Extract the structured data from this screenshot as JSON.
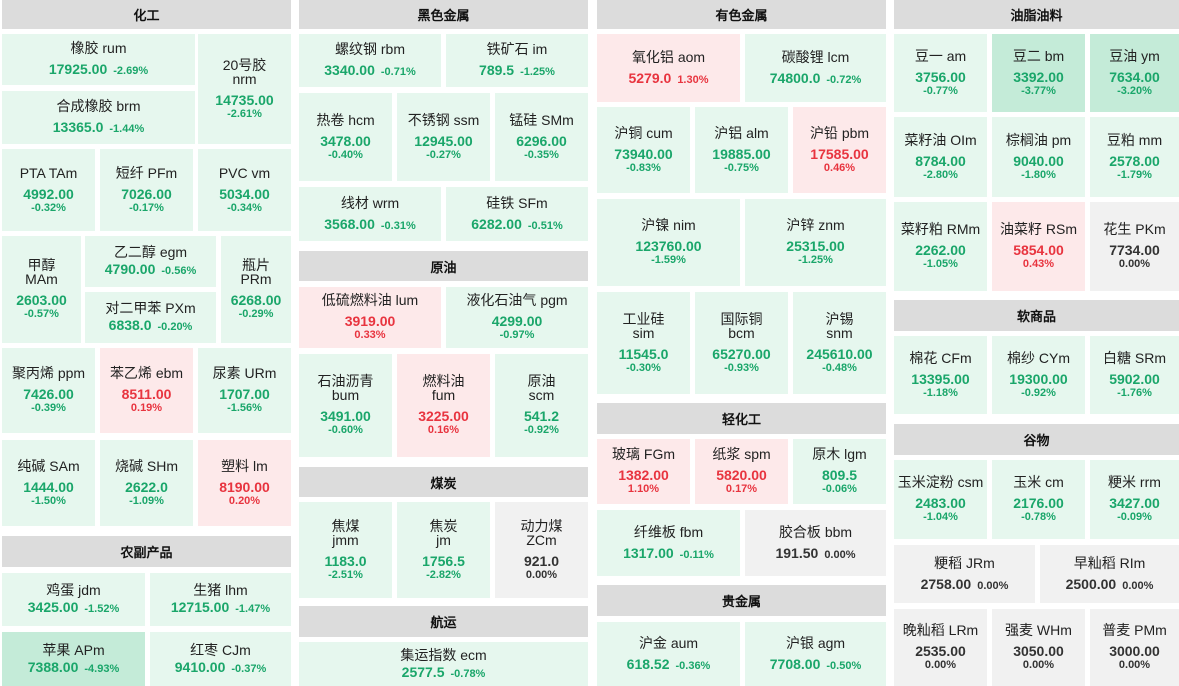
{
  "sections": {
    "huagong": "化工",
    "heise": "黑色金属",
    "youse": "有色金属",
    "youzhi": "油脂油料",
    "yuanyou": "原油",
    "meitan": "煤炭",
    "hangyun": "航运",
    "nongfu": "农副产品",
    "qinghuagong": "轻化工",
    "guijinshu": "贵金属",
    "ruanshangpin": "软商品",
    "guwu": "谷物"
  },
  "items": {
    "rum": {
      "name": "橡胶 rum",
      "price": "17925.00",
      "change": "-2.69%"
    },
    "nrm": {
      "name1": "20号胶",
      "name2": "nrm",
      "price": "14735.00",
      "change": "-2.61%"
    },
    "brm": {
      "name": "合成橡胶 brm",
      "price": "13365.0",
      "change": "-1.44%"
    },
    "TAm": {
      "name": "PTA TAm",
      "price": "4992.00",
      "change": "-0.32%"
    },
    "PFm": {
      "name": "短纤 PFm",
      "price": "7026.00",
      "change": "-0.17%"
    },
    "vm": {
      "name": "PVC vm",
      "price": "5034.00",
      "change": "-0.34%"
    },
    "MAm": {
      "name1": "甲醇",
      "name2": "MAm",
      "price": "2603.00",
      "change": "-0.57%"
    },
    "egm": {
      "name": "乙二醇 egm",
      "price": "4790.00",
      "change": "-0.56%"
    },
    "PXm": {
      "name": "对二甲苯 PXm",
      "price": "6838.0",
      "change": "-0.20%"
    },
    "PRm": {
      "name1": "瓶片",
      "name2": "PRm",
      "price": "6268.00",
      "change": "-0.29%"
    },
    "ppm": {
      "name": "聚丙烯 ppm",
      "price": "7426.00",
      "change": "-0.39%"
    },
    "ebm": {
      "name": "苯乙烯 ebm",
      "price": "8511.00",
      "change": "0.19%"
    },
    "URm": {
      "name": "尿素 URm",
      "price": "1707.00",
      "change": "-1.56%"
    },
    "SAm": {
      "name": "纯碱 SAm",
      "price": "1444.00",
      "change": "-1.50%"
    },
    "SHm": {
      "name": "烧碱 SHm",
      "price": "2622.0",
      "change": "-1.09%"
    },
    "lm": {
      "name": "塑料 lm",
      "price": "8190.00",
      "change": "0.20%"
    },
    "jdm": {
      "name": "鸡蛋 jdm",
      "price": "3425.00",
      "change": "-1.52%"
    },
    "lhm": {
      "name": "生猪 lhm",
      "price": "12715.00",
      "change": "-1.47%"
    },
    "APm": {
      "name": "苹果 APm",
      "price": "7388.00",
      "change": "-4.93%"
    },
    "CJm": {
      "name": "红枣 CJm",
      "price": "9410.00",
      "change": "-0.37%"
    },
    "rbm": {
      "name": "螺纹钢 rbm",
      "price": "3340.00",
      "change": "-0.71%"
    },
    "im": {
      "name": "铁矿石 im",
      "price": "789.5",
      "change": "-1.25%"
    },
    "hcm": {
      "name": "热卷 hcm",
      "price": "3478.00",
      "change": "-0.40%"
    },
    "ssm": {
      "name": "不锈钢 ssm",
      "price": "12945.00",
      "change": "-0.27%"
    },
    "SMm": {
      "name": "锰硅 SMm",
      "price": "6296.00",
      "change": "-0.35%"
    },
    "wrm": {
      "name": "线材 wrm",
      "price": "3568.00",
      "change": "-0.31%"
    },
    "SFm": {
      "name": "硅铁 SFm",
      "price": "6282.00",
      "change": "-0.51%"
    },
    "lum": {
      "name": "低硫燃料油 lum",
      "price": "3919.00",
      "change": "0.33%"
    },
    "pgm": {
      "name": "液化石油气 pgm",
      "price": "4299.00",
      "change": "-0.97%"
    },
    "bum": {
      "name1": "石油沥青",
      "name2": "bum",
      "price": "3491.00",
      "change": "-0.60%"
    },
    "fum": {
      "name1": "燃料油",
      "name2": "fum",
      "price": "3225.00",
      "change": "0.16%"
    },
    "scm": {
      "name1": "原油",
      "name2": "scm",
      "price": "541.2",
      "change": "-0.92%"
    },
    "jmm": {
      "name1": "焦煤",
      "name2": "jmm",
      "price": "1183.0",
      "change": "-2.51%"
    },
    "jm": {
      "name1": "焦炭",
      "name2": "jm",
      "price": "1756.5",
      "change": "-2.82%"
    },
    "ZCm": {
      "name1": "动力煤",
      "name2": "ZCm",
      "price": "921.0",
      "change": "0.00%"
    },
    "ecm": {
      "name": "集运指数 ecm",
      "price": "2577.5",
      "change": "-0.78%"
    },
    "aom": {
      "name": "氧化铝 aom",
      "price": "5279.0",
      "change": "1.30%"
    },
    "lcm": {
      "name": "碳酸锂 lcm",
      "price": "74800.0",
      "change": "-0.72%"
    },
    "cum": {
      "name": "沪铜 cum",
      "price": "73940.00",
      "change": "-0.83%"
    },
    "alm": {
      "name": "沪铝 alm",
      "price": "19885.00",
      "change": "-0.75%"
    },
    "pbm": {
      "name": "沪铅 pbm",
      "price": "17585.00",
      "change": "0.46%"
    },
    "nim": {
      "name": "沪镍 nim",
      "price": "123760.00",
      "change": "-1.59%"
    },
    "znm": {
      "name": "沪锌 znm",
      "price": "25315.00",
      "change": "-1.25%"
    },
    "sim": {
      "name1": "工业硅",
      "name2": "sim",
      "price": "11545.0",
      "change": "-0.30%"
    },
    "bcm": {
      "name1": "国际铜",
      "name2": "bcm",
      "price": "65270.00",
      "change": "-0.93%"
    },
    "snm": {
      "name1": "沪锡",
      "name2": "snm",
      "price": "245610.00",
      "change": "-0.48%"
    },
    "FGm": {
      "name": "玻璃 FGm",
      "price": "1382.00",
      "change": "1.10%"
    },
    "spm": {
      "name": "纸浆 spm",
      "price": "5820.00",
      "change": "0.17%"
    },
    "lgm": {
      "name": "原木 lgm",
      "price": "809.5",
      "change": "-0.06%"
    },
    "fbm": {
      "name": "纤维板 fbm",
      "price": "1317.00",
      "change": "-0.11%"
    },
    "bbm": {
      "name": "胶合板 bbm",
      "price": "191.50",
      "change": "0.00%"
    },
    "aum": {
      "name": "沪金 aum",
      "price": "618.52",
      "change": "-0.36%"
    },
    "agm": {
      "name": "沪银 agm",
      "price": "7708.00",
      "change": "-0.50%"
    },
    "am": {
      "name": "豆一 am",
      "price": "3756.00",
      "change": "-0.77%"
    },
    "bm": {
      "name": "豆二 bm",
      "price": "3392.00",
      "change": "-3.77%"
    },
    "ym": {
      "name": "豆油 ym",
      "price": "7634.00",
      "change": "-3.20%"
    },
    "OIm": {
      "name": "菜籽油 OIm",
      "price": "8784.00",
      "change": "-2.80%"
    },
    "pm": {
      "name": "棕榈油 pm",
      "price": "9040.00",
      "change": "-1.80%"
    },
    "mm": {
      "name": "豆粕 mm",
      "price": "2578.00",
      "change": "-1.79%"
    },
    "RMm": {
      "name": "菜籽粕 RMm",
      "price": "2262.00",
      "change": "-1.05%"
    },
    "RSm": {
      "name": "油菜籽 RSm",
      "price": "5854.00",
      "change": "0.43%"
    },
    "PKm": {
      "name": "花生 PKm",
      "price": "7734.00",
      "change": "0.00%"
    },
    "CFm": {
      "name": "棉花 CFm",
      "price": "13395.00",
      "change": "-1.18%"
    },
    "CYm": {
      "name": "棉纱 CYm",
      "price": "19300.00",
      "change": "-0.92%"
    },
    "SRm": {
      "name": "白糖 SRm",
      "price": "5902.00",
      "change": "-1.76%"
    },
    "csm": {
      "name": "玉米淀粉 csm",
      "price": "2483.00",
      "change": "-1.04%"
    },
    "cm": {
      "name": "玉米 cm",
      "price": "2176.00",
      "change": "-0.78%"
    },
    "rrm": {
      "name": "粳米 rrm",
      "price": "3427.00",
      "change": "-0.09%"
    },
    "JRm": {
      "name": "粳稻 JRm",
      "price": "2758.00",
      "change": "0.00%"
    },
    "RIm": {
      "name": "早籼稻 RIm",
      "price": "2500.00",
      "change": "0.00%"
    },
    "LRm": {
      "name": "晚籼稻 LRm",
      "price": "2535.00",
      "change": "0.00%"
    },
    "WHm": {
      "name": "强麦 WHm",
      "price": "3050.00",
      "change": "0.00%"
    },
    "PMm": {
      "name": "普麦 PMm",
      "price": "3000.00",
      "change": "0.00%"
    }
  },
  "colors": {
    "up": "#e8343f",
    "down": "#1aa66a",
    "flat": "#333333",
    "header_bg": "#dcdcdc"
  }
}
